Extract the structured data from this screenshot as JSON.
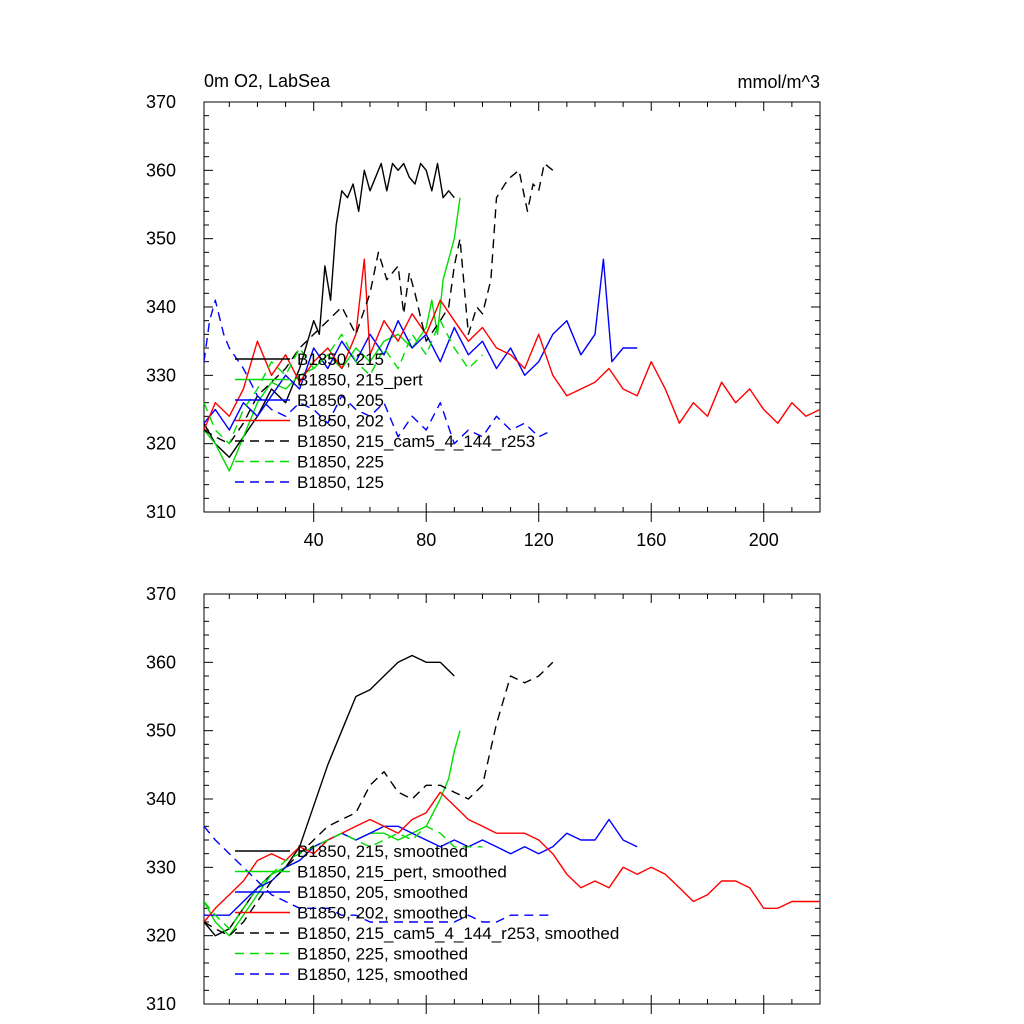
{
  "chart_data": [
    {
      "type": "line",
      "title": "0m O2, LabSea",
      "units": "mmol/m^3",
      "xlim": [
        1,
        220
      ],
      "ylim": [
        310,
        370
      ],
      "xticks": [
        40,
        80,
        120,
        160,
        200
      ],
      "yticks": [
        310,
        320,
        330,
        340,
        350,
        360,
        370
      ],
      "legend_position": "lower-left",
      "series": [
        {
          "name": "B1850, 215",
          "color": "#000000",
          "dash": false,
          "x": [
            1,
            5,
            10,
            15,
            20,
            25,
            30,
            35,
            40,
            42,
            44,
            46,
            48,
            50,
            52,
            54,
            56,
            58,
            60,
            62,
            64,
            66,
            68,
            70,
            72,
            74,
            76,
            78,
            80,
            82,
            84,
            86,
            88,
            90
          ],
          "y": [
            323,
            320,
            318,
            321,
            324,
            328,
            326,
            331,
            338,
            336,
            346,
            341,
            352,
            357,
            356,
            358,
            354,
            360,
            357,
            359,
            361,
            357,
            361,
            360,
            361,
            359,
            358,
            361,
            360,
            357,
            361,
            356,
            357,
            356
          ]
        },
        {
          "name": "B1850, 215_pert",
          "color": "#00dd00",
          "dash": false,
          "x": [
            1,
            5,
            10,
            15,
            20,
            25,
            30,
            35,
            40,
            45,
            50,
            55,
            60,
            65,
            70,
            75,
            80,
            82,
            84,
            86,
            88,
            90,
            92
          ],
          "y": [
            322,
            320,
            316,
            321,
            326,
            329,
            328,
            330,
            331,
            333,
            331,
            334,
            332,
            335,
            336,
            334,
            337,
            341,
            336,
            344,
            347,
            350,
            356
          ]
        },
        {
          "name": "B1850, 205",
          "color": "#0000ff",
          "dash": false,
          "x": [
            1,
            5,
            10,
            15,
            20,
            25,
            30,
            35,
            40,
            45,
            50,
            55,
            60,
            65,
            70,
            75,
            80,
            85,
            90,
            95,
            100,
            105,
            110,
            115,
            120,
            125,
            130,
            135,
            140,
            143,
            146,
            150,
            155
          ],
          "y": [
            323,
            325,
            322,
            326,
            324,
            327,
            330,
            328,
            334,
            331,
            335,
            332,
            336,
            333,
            338,
            334,
            336,
            332,
            337,
            333,
            335,
            331,
            334,
            330,
            332,
            336,
            338,
            333,
            336,
            347,
            332,
            334,
            334
          ]
        },
        {
          "name": "B1850, 202",
          "color": "#ff0000",
          "dash": false,
          "x": [
            1,
            5,
            10,
            15,
            20,
            25,
            30,
            35,
            40,
            45,
            50,
            55,
            58,
            60,
            65,
            70,
            75,
            80,
            85,
            90,
            95,
            100,
            105,
            110,
            115,
            120,
            125,
            130,
            135,
            140,
            145,
            150,
            155,
            160,
            165,
            170,
            175,
            180,
            185,
            190,
            195,
            200,
            205,
            210,
            215,
            220
          ],
          "y": [
            322,
            326,
            324,
            328,
            335,
            330,
            333,
            329,
            332,
            334,
            331,
            336,
            347,
            333,
            338,
            335,
            339,
            336,
            341,
            338,
            335,
            337,
            334,
            333,
            331,
            336,
            330,
            327,
            328,
            329,
            331,
            328,
            327,
            332,
            328,
            323,
            326,
            324,
            329,
            326,
            328,
            325,
            323,
            326,
            324,
            325
          ]
        },
        {
          "name": "B1850, 215_cam5_4_144_r253",
          "color": "#000000",
          "dash": true,
          "x": [
            1,
            5,
            10,
            15,
            20,
            25,
            30,
            35,
            40,
            45,
            50,
            55,
            60,
            63,
            66,
            70,
            72,
            74,
            76,
            80,
            85,
            88,
            90,
            92,
            95,
            98,
            100,
            103,
            105,
            108,
            110,
            113,
            116,
            118,
            120,
            122,
            125
          ],
          "y": [
            322,
            321,
            320,
            323,
            327,
            329,
            331,
            334,
            336,
            338,
            340,
            336,
            342,
            348,
            344,
            346,
            339,
            345,
            342,
            335,
            338,
            340,
            346,
            350,
            336,
            340,
            339,
            344,
            356,
            358,
            359,
            360,
            354,
            358,
            357,
            361,
            360
          ]
        },
        {
          "name": "B1850, 225",
          "color": "#00dd00",
          "dash": true,
          "x": [
            1,
            5,
            10,
            15,
            20,
            25,
            30,
            35,
            40,
            45,
            50,
            55,
            60,
            65,
            70,
            75,
            80,
            85,
            90,
            95,
            100
          ],
          "y": [
            326,
            322,
            320,
            325,
            328,
            332,
            330,
            334,
            331,
            333,
            336,
            332,
            330,
            334,
            331,
            336,
            333,
            338,
            334,
            331,
            333
          ]
        },
        {
          "name": "B1850, 125",
          "color": "#0000ff",
          "dash": true,
          "x": [
            1,
            3,
            5,
            8,
            10,
            15,
            20,
            25,
            30,
            35,
            40,
            45,
            50,
            55,
            60,
            65,
            70,
            75,
            80,
            85,
            90,
            95,
            100,
            105,
            110,
            115,
            120,
            125
          ],
          "y": [
            332,
            338,
            341,
            336,
            334,
            331,
            327,
            325,
            324,
            326,
            325,
            323,
            327,
            325,
            324,
            326,
            321,
            324,
            322,
            326,
            320,
            322,
            321,
            324,
            322,
            323,
            321,
            322
          ]
        }
      ]
    },
    {
      "type": "line",
      "title": "",
      "xlim": [
        1,
        220
      ],
      "ylim": [
        310,
        370
      ],
      "yticks": [
        310,
        320,
        330,
        340,
        350,
        360,
        370
      ],
      "legend_position": "lower-left",
      "series": [
        {
          "name": "B1850, 215, smoothed",
          "color": "#000000",
          "dash": false,
          "x": [
            1,
            5,
            10,
            15,
            20,
            25,
            30,
            35,
            40,
            45,
            50,
            55,
            60,
            65,
            70,
            75,
            80,
            85,
            90
          ],
          "y": [
            322,
            320,
            321,
            324,
            327,
            329,
            330,
            333,
            339,
            345,
            350,
            355,
            356,
            358,
            360,
            361,
            360,
            360,
            358
          ]
        },
        {
          "name": "B1850, 215_pert, smoothed",
          "color": "#00dd00",
          "dash": false,
          "x": [
            1,
            5,
            10,
            15,
            20,
            25,
            30,
            35,
            40,
            45,
            50,
            55,
            60,
            65,
            70,
            75,
            80,
            85,
            88,
            90,
            92
          ],
          "y": [
            325,
            322,
            320,
            323,
            326,
            329,
            330,
            331,
            333,
            334,
            335,
            334,
            335,
            335,
            334,
            335,
            336,
            340,
            343,
            347,
            350
          ]
        },
        {
          "name": "B1850, 205, smoothed",
          "color": "#0000ff",
          "dash": false,
          "x": [
            1,
            5,
            10,
            15,
            20,
            25,
            30,
            35,
            40,
            45,
            50,
            55,
            60,
            65,
            70,
            75,
            80,
            85,
            90,
            95,
            100,
            105,
            110,
            115,
            120,
            125,
            130,
            135,
            140,
            145,
            150,
            155
          ],
          "y": [
            323,
            323,
            323,
            325,
            327,
            328,
            330,
            331,
            333,
            334,
            335,
            334,
            335,
            336,
            336,
            335,
            334,
            333,
            334,
            333,
            334,
            333,
            332,
            333,
            332,
            333,
            335,
            334,
            334,
            337,
            334,
            333
          ]
        },
        {
          "name": "B1850, 202, smoothed",
          "color": "#ff0000",
          "dash": false,
          "x": [
            1,
            5,
            10,
            15,
            20,
            25,
            30,
            35,
            40,
            45,
            50,
            55,
            60,
            65,
            70,
            75,
            80,
            85,
            90,
            95,
            100,
            105,
            110,
            115,
            120,
            125,
            130,
            135,
            140,
            145,
            150,
            155,
            160,
            165,
            170,
            175,
            180,
            185,
            190,
            195,
            200,
            205,
            210,
            215,
            220
          ],
          "y": [
            322,
            324,
            326,
            328,
            331,
            332,
            331,
            333,
            332,
            334,
            335,
            336,
            337,
            336,
            335,
            337,
            338,
            341,
            339,
            337,
            336,
            335,
            335,
            335,
            334,
            332,
            329,
            327,
            328,
            327,
            330,
            329,
            330,
            329,
            327,
            325,
            326,
            328,
            328,
            327,
            324,
            324,
            325,
            325,
            325
          ]
        },
        {
          "name": "B1850, 215_cam5_4_144_r253, smoothed",
          "color": "#000000",
          "dash": true,
          "x": [
            1,
            5,
            10,
            15,
            20,
            25,
            30,
            35,
            40,
            45,
            50,
            55,
            60,
            65,
            70,
            75,
            80,
            85,
            90,
            95,
            100,
            105,
            110,
            115,
            120,
            125
          ],
          "y": [
            322,
            321,
            320,
            322,
            325,
            328,
            330,
            332,
            334,
            336,
            337,
            338,
            342,
            344,
            341,
            340,
            342,
            342,
            341,
            340,
            342,
            351,
            358,
            357,
            358,
            360
          ]
        },
        {
          "name": "B1850, 225, smoothed",
          "color": "#00dd00",
          "dash": true,
          "x": [
            1,
            5,
            10,
            15,
            20,
            25,
            30,
            35,
            40,
            45,
            50,
            55,
            60,
            65,
            70,
            75,
            80,
            85,
            90,
            95,
            100
          ],
          "y": [
            325,
            323,
            321,
            324,
            327,
            329,
            331,
            332,
            333,
            334,
            335,
            334,
            333,
            334,
            335,
            334,
            336,
            335,
            333,
            333,
            333
          ]
        },
        {
          "name": "B1850, 125, smoothed",
          "color": "#0000ff",
          "dash": true,
          "x": [
            1,
            5,
            10,
            15,
            20,
            25,
            30,
            35,
            40,
            45,
            50,
            55,
            60,
            65,
            70,
            75,
            80,
            85,
            90,
            95,
            100,
            105,
            110,
            115,
            120,
            125
          ],
          "y": [
            336,
            334,
            332,
            330,
            328,
            326,
            325,
            324,
            324,
            324,
            323,
            323,
            322,
            322,
            322,
            322,
            322,
            322,
            322,
            323,
            322,
            322,
            323,
            323,
            323,
            323
          ]
        }
      ]
    }
  ]
}
